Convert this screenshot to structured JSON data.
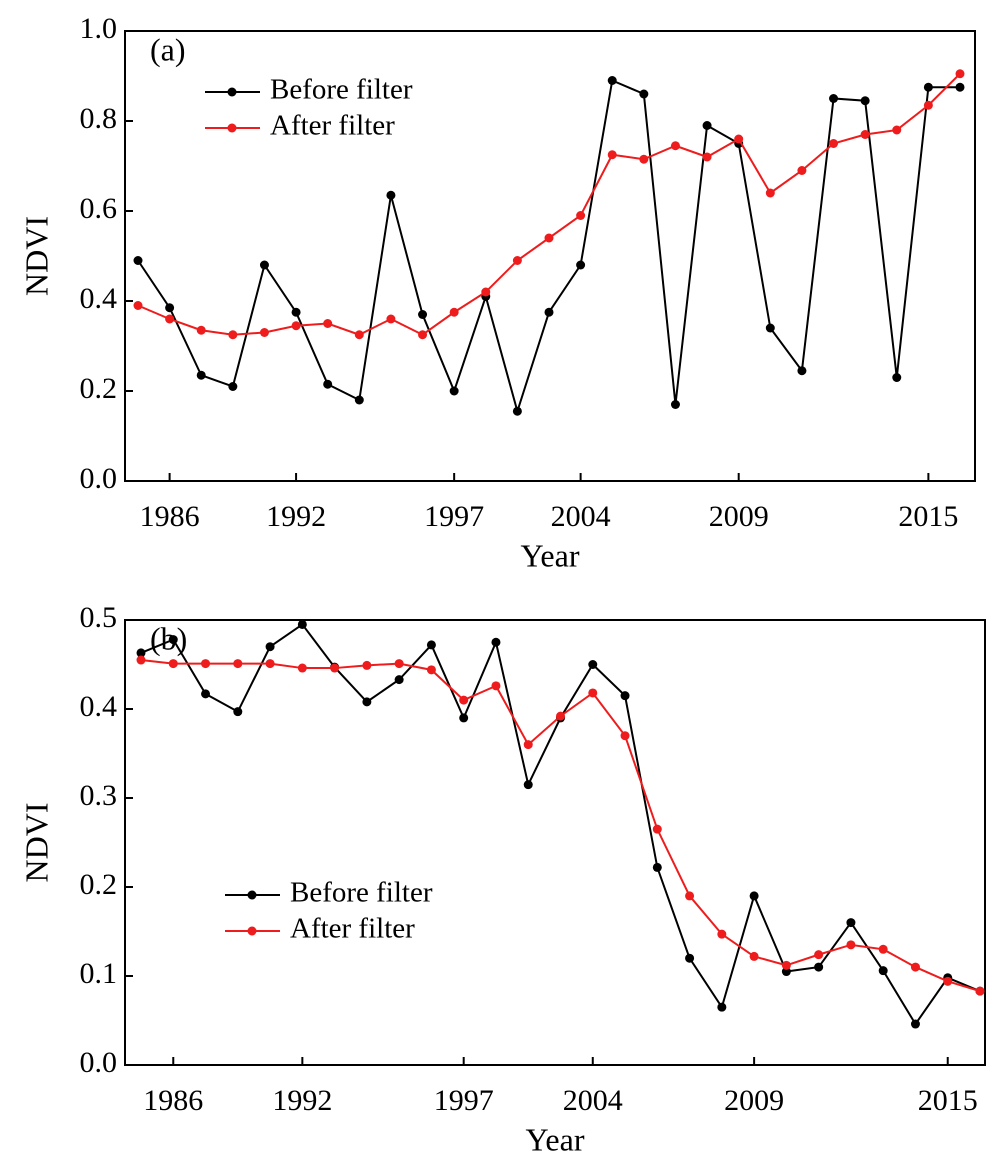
{
  "chart_data": [
    {
      "type": "line",
      "annotation": "(a)",
      "xlabel": "Year",
      "ylabel": "NDVI",
      "categories": [
        null,
        "1986",
        null,
        null,
        null,
        "1992",
        null,
        null,
        null,
        null,
        "1997",
        null,
        null,
        null,
        "2004",
        null,
        null,
        null,
        null,
        "2009",
        null,
        null,
        null,
        null,
        null,
        "2015",
        null
      ],
      "series": [
        {
          "name": "Before filter",
          "color": "#000000",
          "values": [
            0.49,
            0.385,
            0.235,
            0.21,
            0.48,
            0.375,
            0.215,
            0.18,
            0.635,
            0.37,
            0.2,
            0.41,
            0.155,
            0.375,
            0.48,
            0.89,
            0.86,
            0.17,
            0.79,
            0.75,
            0.34,
            0.245,
            0.85,
            0.845,
            0.23,
            0.875,
            0.875
          ]
        },
        {
          "name": "After filter",
          "color": "#ee1c1c",
          "values": [
            0.39,
            0.36,
            0.335,
            0.325,
            0.33,
            0.345,
            0.35,
            0.325,
            0.36,
            0.325,
            0.375,
            0.42,
            0.49,
            0.54,
            0.59,
            0.725,
            0.715,
            0.745,
            0.72,
            0.76,
            0.64,
            0.69,
            0.75,
            0.77,
            0.78,
            0.835,
            0.905
          ]
        }
      ],
      "ylim": [
        0,
        1
      ],
      "yticks": [
        {
          "value": 0,
          "label": "0.0"
        },
        0.2,
        0.4,
        0.6,
        0.8,
        {
          "value": 1,
          "label": "1.0"
        }
      ],
      "legend": "upper left"
    },
    {
      "type": "line",
      "annotation": "(b)",
      "xlabel": "Year",
      "ylabel": "NDVI",
      "categories": [
        null,
        "1986",
        null,
        null,
        null,
        "1992",
        null,
        null,
        null,
        null,
        "1997",
        null,
        null,
        null,
        "2004",
        null,
        null,
        null,
        null,
        "2009",
        null,
        null,
        null,
        null,
        null,
        "2015",
        null
      ],
      "series": [
        {
          "name": "Before filter",
          "color": "#000000",
          "values": [
            0.463,
            0.478,
            0.417,
            0.397,
            0.47,
            0.495,
            0.447,
            0.408,
            0.433,
            0.472,
            0.39,
            0.475,
            0.315,
            0.39,
            0.45,
            0.415,
            0.222,
            0.12,
            0.065,
            0.19,
            0.105,
            0.11,
            0.16,
            0.106,
            0.046,
            0.098,
            0.083
          ]
        },
        {
          "name": "After filter",
          "color": "#ee1c1c",
          "values": [
            0.455,
            0.451,
            0.451,
            0.451,
            0.451,
            0.446,
            0.446,
            0.449,
            0.451,
            0.444,
            0.41,
            0.426,
            0.36,
            0.392,
            0.418,
            0.37,
            0.265,
            0.19,
            0.147,
            0.122,
            0.112,
            0.124,
            0.135,
            0.13,
            0.11,
            0.094,
            0.083
          ]
        }
      ],
      "ylim": [
        0,
        0.5
      ],
      "yticks": [
        {
          "value": 0,
          "label": "0.0"
        },
        0.1,
        0.2,
        0.3,
        0.4,
        0.5
      ],
      "legend": "center left"
    }
  ]
}
